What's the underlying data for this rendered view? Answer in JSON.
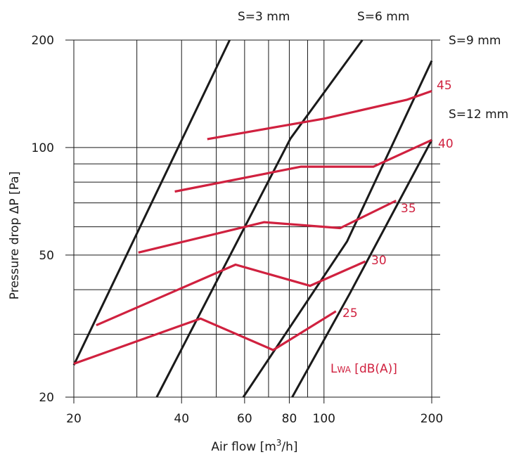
{
  "chart_data": {
    "type": "line",
    "x_scale": "log",
    "y_scale": "log",
    "xlabel_parts": [
      "Air flow [m",
      "3",
      "/h]"
    ],
    "ylabel": "Pressure drop ΔP [Pa]",
    "xlim": [
      20,
      200
    ],
    "ylim": [
      20,
      200
    ],
    "x_ticks": [
      20,
      40,
      60,
      80,
      100,
      200
    ],
    "x_tick_labels": [
      "20",
      "40",
      "60",
      "80",
      "100",
      "200"
    ],
    "y_ticks": [
      20,
      50,
      100,
      200
    ],
    "y_tick_labels": [
      "20",
      "50",
      "100",
      "200"
    ],
    "x_grid": [
      20,
      30,
      40,
      50,
      60,
      70,
      80,
      90,
      100,
      200
    ],
    "y_grid": [
      20,
      30,
      40,
      50,
      60,
      70,
      80,
      90,
      100,
      200
    ],
    "grid": true,
    "colors": {
      "slot_lines": "#1a1a1a",
      "noise_lines": "#d0213f",
      "grid": "#1a1a1a"
    },
    "slot_series": [
      {
        "name": "S=3 mm",
        "points": [
          [
            20,
            24.6
          ],
          [
            54.5,
            200
          ]
        ]
      },
      {
        "name": "S=6 mm",
        "points": [
          [
            34.1,
            20
          ],
          [
            80.6,
            106
          ],
          [
            128,
            200
          ]
        ]
      },
      {
        "name": "S=9 mm",
        "points": [
          [
            59.5,
            20
          ],
          [
            116,
            54.6
          ],
          [
            200,
            175
          ]
        ]
      },
      {
        "name": "S=12 mm",
        "points": [
          [
            81.5,
            20
          ],
          [
            118,
            39
          ],
          [
            200,
            105
          ]
        ]
      }
    ],
    "noise_level_title_parts": [
      "L",
      "WA",
      " [dB(A)]"
    ],
    "noise_series": [
      {
        "name": "25",
        "points": [
          [
            20,
            24.8
          ],
          [
            45.2,
            33.2
          ],
          [
            72.1,
            27.1
          ],
          [
            108,
            34.8
          ]
        ]
      },
      {
        "name": "30",
        "points": [
          [
            23.1,
            31.8
          ],
          [
            56.6,
            47
          ],
          [
            91.4,
            41
          ],
          [
            130.5,
            48
          ]
        ]
      },
      {
        "name": "35",
        "points": [
          [
            30.3,
            50.8
          ],
          [
            68.1,
            61.8
          ],
          [
            111,
            59.5
          ],
          [
            159,
            71
          ]
        ]
      },
      {
        "name": "40",
        "points": [
          [
            38.3,
            75.3
          ],
          [
            86.3,
            88.4
          ],
          [
            137.5,
            88.4
          ],
          [
            200,
            105
          ]
        ]
      },
      {
        "name": "45",
        "points": [
          [
            47.2,
            105.6
          ],
          [
            100,
            120.5
          ],
          [
            170,
            136
          ],
          [
            200,
            144
          ]
        ]
      }
    ]
  }
}
